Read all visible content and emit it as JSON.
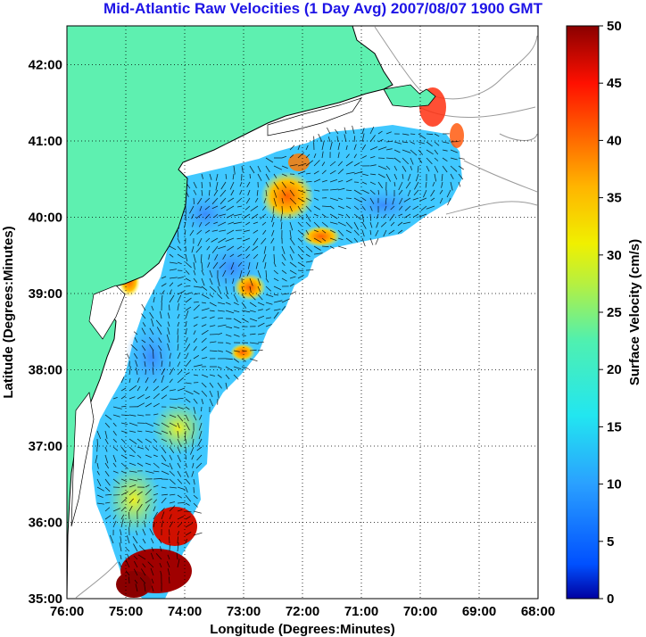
{
  "title": "Mid-Atlantic Raw Velocities (1 Day Avg) 2007/08/07 1900 GMT",
  "map": {
    "xlabel": "Longitude (Degrees:Minutes)",
    "ylabel": "Latitude (Degrees:Minutes)",
    "lon_ticks": [
      "76:00",
      "75:00",
      "74:00",
      "73:00",
      "72:00",
      "71:00",
      "70:00",
      "69:00",
      "68:00"
    ],
    "lat_ticks": [
      "35:00",
      "36:00",
      "37:00",
      "38:00",
      "39:00",
      "40:00",
      "41:00",
      "42:00"
    ],
    "lon_range": [
      "76:00 W",
      "68:00 W"
    ],
    "lat_range": [
      "35:00 N",
      "42:30 N"
    ],
    "land_color": "#5ef0b0",
    "grid": "dotted"
  },
  "colorbar": {
    "label": "Surface Velocity (cm/s)",
    "ticks": [
      "0",
      "5",
      "10",
      "15",
      "20",
      "25",
      "30",
      "35",
      "40",
      "45",
      "50"
    ],
    "range": [
      0,
      50
    ],
    "colormap": "jet"
  }
}
